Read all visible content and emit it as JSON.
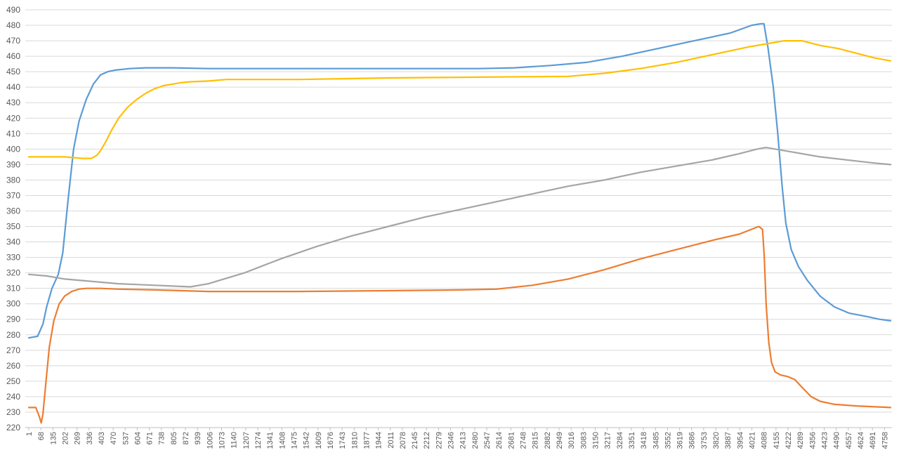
{
  "chart_data": {
    "type": "line",
    "title": "",
    "xlabel": "",
    "ylabel": "",
    "ylim": [
      220,
      490
    ],
    "xlim": [
      1,
      4792
    ],
    "y_ticks": [
      220,
      230,
      240,
      250,
      260,
      270,
      280,
      290,
      300,
      310,
      320,
      330,
      340,
      350,
      360,
      370,
      380,
      390,
      400,
      410,
      420,
      430,
      440,
      450,
      460,
      470,
      480,
      490
    ],
    "x_tick_labels": [
      "1",
      "68",
      "135",
      "202",
      "269",
      "336",
      "403",
      "470",
      "537",
      "604",
      "671",
      "738",
      "805",
      "872",
      "939",
      "1006",
      "1073",
      "1140",
      "1207",
      "1274",
      "1341",
      "1408",
      "1475",
      "1542",
      "1609",
      "1676",
      "1743",
      "1810",
      "1877",
      "1944",
      "2011",
      "2078",
      "2145",
      "2212",
      "2279",
      "2346",
      "2413",
      "2480",
      "2547",
      "2614",
      "2681",
      "2748",
      "2815",
      "2882",
      "2949",
      "3016",
      "3083",
      "3150",
      "3217",
      "3284",
      "3351",
      "3418",
      "3485",
      "3552",
      "3619",
      "3686",
      "3753",
      "3820",
      "3887",
      "3954",
      "4021",
      "4088",
      "4155",
      "4222",
      "4289",
      "4356",
      "4423",
      "4490",
      "4557",
      "4624",
      "4691",
      "4758"
    ],
    "grid": true,
    "legend": "none",
    "series": [
      {
        "color": "#5b9bd5",
        "x": [
          1,
          50,
          80,
          100,
          130,
          165,
          190,
          220,
          250,
          280,
          320,
          360,
          400,
          440,
          480,
          520,
          560,
          650,
          800,
          1000,
          1500,
          2000,
          2500,
          2700,
          2900,
          3100,
          3300,
          3500,
          3700,
          3900,
          4020,
          4070,
          4088,
          4110,
          4140,
          4165,
          4190,
          4210,
          4240,
          4280,
          4330,
          4400,
          4480,
          4560,
          4650,
          4730,
          4792
        ],
        "y": [
          278,
          279,
          287,
          298,
          310,
          319,
          333,
          368,
          400,
          418,
          432,
          442,
          448,
          450,
          451,
          451.5,
          452,
          452.5,
          452.5,
          452,
          452,
          452,
          452,
          452.5,
          454,
          456,
          460,
          465,
          470,
          475,
          480,
          481,
          481,
          466,
          440,
          410,
          375,
          352,
          335,
          324,
          315,
          305,
          298,
          294,
          292,
          290,
          289
        ]
      },
      {
        "color": "#ed7d31",
        "x": [
          1,
          40,
          60,
          70,
          80,
          95,
          115,
          140,
          170,
          200,
          240,
          280,
          320,
          400,
          500,
          700,
          1000,
          1500,
          2000,
          2400,
          2600,
          2800,
          3000,
          3200,
          3400,
          3600,
          3800,
          3950,
          4060,
          4080,
          4090,
          4100,
          4115,
          4130,
          4150,
          4180,
          4220,
          4260,
          4300,
          4350,
          4400,
          4480,
          4600,
          4792
        ],
        "y": [
          233,
          233,
          227,
          223,
          229,
          248,
          272,
          289,
          300,
          305,
          308,
          309.5,
          310,
          310,
          309.5,
          309,
          308,
          308,
          308.5,
          309,
          309.5,
          312,
          316,
          322,
          329,
          335,
          341,
          345,
          350,
          348,
          330,
          300,
          275,
          262,
          256,
          254,
          253,
          251,
          246,
          240,
          237,
          235,
          234,
          233
        ]
      },
      {
        "color": "#a5a5a5",
        "x": [
          1,
          100,
          200,
          300,
          400,
          500,
          600,
          700,
          800,
          900,
          1000,
          1200,
          1400,
          1600,
          1800,
          2000,
          2200,
          2400,
          2600,
          2800,
          3000,
          3200,
          3400,
          3600,
          3800,
          3950,
          4050,
          4100,
          4150,
          4250,
          4400,
          4550,
          4700,
          4792
        ],
        "y": [
          319,
          318,
          316,
          315,
          314,
          313,
          312.5,
          312,
          311.5,
          311,
          313,
          320,
          329,
          337,
          344,
          350,
          356,
          361,
          366,
          371,
          376,
          380,
          385,
          389,
          393,
          397,
          400,
          401,
          400,
          398,
          395,
          393,
          391,
          390
        ]
      },
      {
        "color": "#ffc000",
        "x": [
          1,
          100,
          200,
          300,
          350,
          380,
          400,
          430,
          460,
          500,
          550,
          600,
          650,
          700,
          750,
          800,
          850,
          900,
          1000,
          1100,
          1500,
          2000,
          2500,
          3000,
          3200,
          3400,
          3600,
          3800,
          4000,
          4100,
          4200,
          4300,
          4400,
          4500,
          4600,
          4700,
          4792
        ],
        "y": [
          395,
          395,
          395,
          394,
          394,
          396,
          399,
          405,
          412,
          420,
          427,
          432,
          436,
          439,
          441,
          442,
          443,
          443.5,
          444,
          445,
          445,
          446,
          446.5,
          447,
          449,
          452,
          456,
          461,
          466,
          468,
          470,
          470,
          467,
          465,
          462,
          459,
          457
        ]
      }
    ]
  }
}
